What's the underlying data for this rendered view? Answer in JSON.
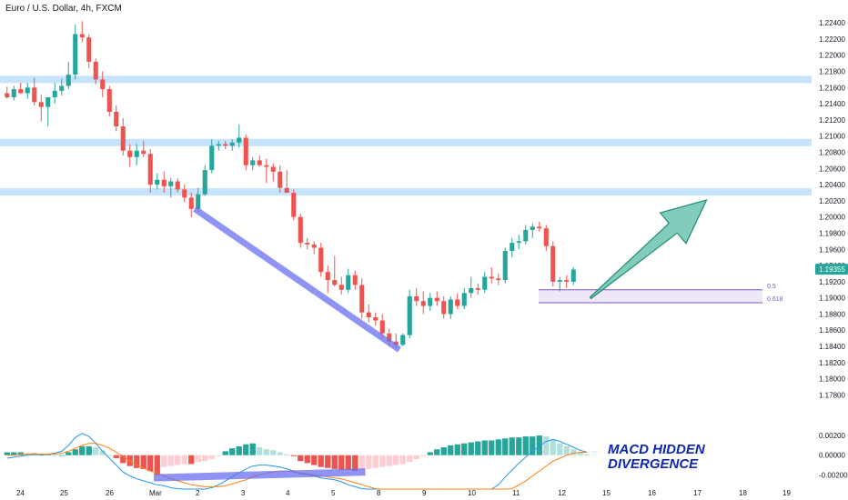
{
  "header": {
    "symbol_title": "Euro / U.S. Dollar, 4h, FXCM"
  },
  "colors": {
    "up": "#26a69a",
    "down": "#ef5350",
    "zone": "#bbdefb",
    "trendline": "#6a6ff0",
    "arrow": "#4db6a0",
    "fib": "#7e57c2",
    "fib_fill": "#ede7f6",
    "macd_line": "#2196f3",
    "signal_line": "#ff7f0e",
    "price_tag": "#26a69a"
  },
  "chart_data": [
    {
      "type": "candlestick",
      "title": "Euro / U.S. Dollar, 4h, FXCM",
      "x_tick_labels": [
        "24",
        "25",
        "26",
        "Mar",
        "2",
        "3",
        "4",
        "5",
        "8",
        "9",
        "10",
        "11",
        "12",
        "15",
        "16",
        "17",
        "18",
        "19"
      ],
      "y_ticks": [
        "1.22400",
        "1.22200",
        "1.22000",
        "1.21800",
        "1.21600",
        "1.21400",
        "1.21200",
        "1.21000",
        "1.20800",
        "1.20600",
        "1.20400",
        "1.20200",
        "1.20000",
        "1.19800",
        "1.19600",
        "1.19400",
        "1.19200",
        "1.19000",
        "1.18800",
        "1.18600",
        "1.18400",
        "1.18200",
        "1.18000",
        "1.17800"
      ],
      "ylim": [
        1.1767,
        1.2248
      ],
      "current_price": "1.19355",
      "candles": [
        {
          "o": 1.2153,
          "h": 1.2161,
          "l": 1.2146,
          "c": 1.2148
        },
        {
          "o": 1.2148,
          "h": 1.2162,
          "l": 1.2144,
          "c": 1.2158
        },
        {
          "o": 1.2158,
          "h": 1.2166,
          "l": 1.2152,
          "c": 1.2153
        },
        {
          "o": 1.2153,
          "h": 1.2166,
          "l": 1.2146,
          "c": 1.216
        },
        {
          "o": 1.216,
          "h": 1.2172,
          "l": 1.2138,
          "c": 1.2142
        },
        {
          "o": 1.2142,
          "h": 1.2151,
          "l": 1.2118,
          "c": 1.2136
        },
        {
          "o": 1.2136,
          "h": 1.2148,
          "l": 1.2112,
          "c": 1.2148
        },
        {
          "o": 1.2148,
          "h": 1.2166,
          "l": 1.214,
          "c": 1.2156
        },
        {
          "o": 1.2156,
          "h": 1.2171,
          "l": 1.215,
          "c": 1.2162
        },
        {
          "o": 1.2162,
          "h": 1.2192,
          "l": 1.2158,
          "c": 1.2176
        },
        {
          "o": 1.2176,
          "h": 1.2238,
          "l": 1.217,
          "c": 1.2226
        },
        {
          "o": 1.2226,
          "h": 1.2242,
          "l": 1.2216,
          "c": 1.2222
        },
        {
          "o": 1.2222,
          "h": 1.2226,
          "l": 1.2184,
          "c": 1.2192
        },
        {
          "o": 1.2192,
          "h": 1.2196,
          "l": 1.2164,
          "c": 1.217
        },
        {
          "o": 1.217,
          "h": 1.218,
          "l": 1.2148,
          "c": 1.2158
        },
        {
          "o": 1.2158,
          "h": 1.2162,
          "l": 1.2124,
          "c": 1.213
        },
        {
          "o": 1.213,
          "h": 1.2138,
          "l": 1.2106,
          "c": 1.2112
        },
        {
          "o": 1.2112,
          "h": 1.2122,
          "l": 1.2076,
          "c": 1.2082
        },
        {
          "o": 1.2082,
          "h": 1.209,
          "l": 1.2062,
          "c": 1.2074
        },
        {
          "o": 1.2074,
          "h": 1.209,
          "l": 1.2064,
          "c": 1.2082
        },
        {
          "o": 1.2082,
          "h": 1.2094,
          "l": 1.2074,
          "c": 1.2078
        },
        {
          "o": 1.2078,
          "h": 1.2084,
          "l": 1.203,
          "c": 1.204
        },
        {
          "o": 1.204,
          "h": 1.2054,
          "l": 1.2034,
          "c": 1.2046
        },
        {
          "o": 1.2046,
          "h": 1.2056,
          "l": 1.203,
          "c": 1.2038
        },
        {
          "o": 1.2038,
          "h": 1.2048,
          "l": 1.2024,
          "c": 1.2044
        },
        {
          "o": 1.2044,
          "h": 1.2048,
          "l": 1.203,
          "c": 1.2034
        },
        {
          "o": 1.2034,
          "h": 1.204,
          "l": 1.2018,
          "c": 1.2024
        },
        {
          "o": 1.2024,
          "h": 1.203,
          "l": 1.2,
          "c": 1.201
        },
        {
          "o": 1.201,
          "h": 1.2036,
          "l": 1.2006,
          "c": 1.2028
        },
        {
          "o": 1.2028,
          "h": 1.2064,
          "l": 1.2026,
          "c": 1.2058
        },
        {
          "o": 1.2058,
          "h": 1.2096,
          "l": 1.2054,
          "c": 1.2088
        },
        {
          "o": 1.2088,
          "h": 1.2094,
          "l": 1.2082,
          "c": 1.209
        },
        {
          "o": 1.209,
          "h": 1.2094,
          "l": 1.2084,
          "c": 1.2088
        },
        {
          "o": 1.2088,
          "h": 1.2096,
          "l": 1.2082,
          "c": 1.2092
        },
        {
          "o": 1.2092,
          "h": 1.2114,
          "l": 1.2086,
          "c": 1.2098
        },
        {
          "o": 1.2098,
          "h": 1.2102,
          "l": 1.2058,
          "c": 1.2064
        },
        {
          "o": 1.2064,
          "h": 1.2074,
          "l": 1.2058,
          "c": 1.207
        },
        {
          "o": 1.207,
          "h": 1.2076,
          "l": 1.2062,
          "c": 1.2064
        },
        {
          "o": 1.2064,
          "h": 1.2072,
          "l": 1.2042,
          "c": 1.2062
        },
        {
          "o": 1.2062,
          "h": 1.2066,
          "l": 1.2044,
          "c": 1.2056
        },
        {
          "o": 1.2056,
          "h": 1.2064,
          "l": 1.203,
          "c": 1.2036
        },
        {
          "o": 1.2036,
          "h": 1.2058,
          "l": 1.203,
          "c": 1.203
        },
        {
          "o": 1.203,
          "h": 1.2034,
          "l": 1.1996,
          "c": 1.2
        },
        {
          "o": 1.2,
          "h": 1.2004,
          "l": 1.1962,
          "c": 1.1968
        },
        {
          "o": 1.1968,
          "h": 1.1974,
          "l": 1.196,
          "c": 1.1966
        },
        {
          "o": 1.1966,
          "h": 1.197,
          "l": 1.1954,
          "c": 1.1962
        },
        {
          "o": 1.1962,
          "h": 1.1968,
          "l": 1.1926,
          "c": 1.1932
        },
        {
          "o": 1.1932,
          "h": 1.194,
          "l": 1.1906,
          "c": 1.1922
        },
        {
          "o": 1.1922,
          "h": 1.1952,
          "l": 1.1914,
          "c": 1.1916
        },
        {
          "o": 1.1916,
          "h": 1.1926,
          "l": 1.1904,
          "c": 1.191
        },
        {
          "o": 1.191,
          "h": 1.1936,
          "l": 1.1906,
          "c": 1.1928
        },
        {
          "o": 1.1928,
          "h": 1.1934,
          "l": 1.191,
          "c": 1.1916
        },
        {
          "o": 1.1916,
          "h": 1.1924,
          "l": 1.1874,
          "c": 1.1882
        },
        {
          "o": 1.1882,
          "h": 1.1892,
          "l": 1.187,
          "c": 1.1876
        },
        {
          "o": 1.1876,
          "h": 1.1882,
          "l": 1.1866,
          "c": 1.1872
        },
        {
          "o": 1.1872,
          "h": 1.188,
          "l": 1.185,
          "c": 1.1856
        },
        {
          "o": 1.1856,
          "h": 1.1862,
          "l": 1.184,
          "c": 1.1846
        },
        {
          "o": 1.1846,
          "h": 1.1856,
          "l": 1.1838,
          "c": 1.1842
        },
        {
          "o": 1.1842,
          "h": 1.1856,
          "l": 1.184,
          "c": 1.1854
        },
        {
          "o": 1.1854,
          "h": 1.191,
          "l": 1.185,
          "c": 1.1902
        },
        {
          "o": 1.1902,
          "h": 1.1912,
          "l": 1.189,
          "c": 1.1896
        },
        {
          "o": 1.1896,
          "h": 1.1908,
          "l": 1.188,
          "c": 1.189
        },
        {
          "o": 1.189,
          "h": 1.1906,
          "l": 1.1884,
          "c": 1.19
        },
        {
          "o": 1.19,
          "h": 1.1908,
          "l": 1.189,
          "c": 1.1896
        },
        {
          "o": 1.1896,
          "h": 1.1902,
          "l": 1.1874,
          "c": 1.188
        },
        {
          "o": 1.188,
          "h": 1.1902,
          "l": 1.1874,
          "c": 1.1898
        },
        {
          "o": 1.1898,
          "h": 1.1906,
          "l": 1.1886,
          "c": 1.189
        },
        {
          "o": 1.189,
          "h": 1.1912,
          "l": 1.1886,
          "c": 1.1906
        },
        {
          "o": 1.1906,
          "h": 1.1926,
          "l": 1.19,
          "c": 1.1912
        },
        {
          "o": 1.1912,
          "h": 1.1918,
          "l": 1.1904,
          "c": 1.191
        },
        {
          "o": 1.191,
          "h": 1.1932,
          "l": 1.1906,
          "c": 1.1926
        },
        {
          "o": 1.1926,
          "h": 1.1938,
          "l": 1.1918,
          "c": 1.1924
        },
        {
          "o": 1.1924,
          "h": 1.193,
          "l": 1.1916,
          "c": 1.1922
        },
        {
          "o": 1.1922,
          "h": 1.1962,
          "l": 1.1918,
          "c": 1.1958
        },
        {
          "o": 1.1958,
          "h": 1.1974,
          "l": 1.195,
          "c": 1.1968
        },
        {
          "o": 1.1968,
          "h": 1.1978,
          "l": 1.196,
          "c": 1.197
        },
        {
          "o": 1.197,
          "h": 1.199,
          "l": 1.1966,
          "c": 1.1984
        },
        {
          "o": 1.1984,
          "h": 1.1992,
          "l": 1.1974,
          "c": 1.1988
        },
        {
          "o": 1.1988,
          "h": 1.1994,
          "l": 1.1982,
          "c": 1.1986
        },
        {
          "o": 1.1986,
          "h": 1.199,
          "l": 1.1958,
          "c": 1.1964
        },
        {
          "o": 1.1964,
          "h": 1.197,
          "l": 1.1914,
          "c": 1.192
        },
        {
          "o": 1.192,
          "h": 1.1926,
          "l": 1.1908,
          "c": 1.1922
        },
        {
          "o": 1.1922,
          "h": 1.1928,
          "l": 1.1912,
          "c": 1.192
        },
        {
          "o": 1.192,
          "h": 1.1938,
          "l": 1.1916,
          "c": 1.1935
        }
      ],
      "resistance_zones": [
        1.217,
        1.2092,
        1.2031
      ],
      "fib_levels": [
        {
          "label": "0.5",
          "value": 1.191
        },
        {
          "label": "0.618",
          "value": 1.1894
        }
      ],
      "trendline": {
        "from": {
          "bar": 28,
          "price": 1.201
        },
        "to": {
          "bar": 58,
          "price": 1.1836
        }
      },
      "arrow": {
        "from": {
          "bar": 86,
          "price": 1.19
        },
        "to": {
          "bar": 103,
          "price": 1.2021
        }
      }
    },
    {
      "type": "bar",
      "title": "",
      "y_ticks": [
        "0.00200",
        "0.00000",
        "-0.00200"
      ],
      "ylim": [
        -0.0027,
        0.0032
      ],
      "histogram": [
        0.0003,
        0.0003,
        0.0003,
        0.0002,
        0.0002,
        0.0001,
        0.0001,
        0.0,
        0.0,
        0.0003,
        0.0006,
        0.0009,
        0.0009,
        0.0008,
        0.0005,
        0.0,
        -0.0003,
        -0.0008,
        -0.0011,
        -0.0013,
        -0.0014,
        -0.0016,
        -0.002,
        -0.0012,
        -0.0011,
        -0.001,
        -0.0009,
        -0.0009,
        -0.0007,
        -0.0006,
        -0.0004,
        0.0,
        0.0004,
        0.0007,
        0.0009,
        0.0011,
        0.0012,
        0.0008,
        0.0006,
        0.0005,
        0.0003,
        0.0001,
        -0.0001,
        -0.0006,
        -0.0008,
        -0.001,
        -0.0012,
        -0.0013,
        -0.0014,
        -0.0015,
        -0.0015,
        -0.0016,
        -0.0015,
        -0.0014,
        -0.0013,
        -0.0012,
        -0.0011,
        -0.001,
        -0.0009,
        -0.0007,
        -0.0004,
        -0.0001,
        0.0003,
        0.0006,
        0.0008,
        0.001,
        0.0011,
        0.0012,
        0.0013,
        0.0014,
        0.0015,
        0.0015,
        0.0016,
        0.0017,
        0.0018,
        0.0018,
        0.0019,
        0.0019,
        0.002,
        0.0019,
        0.0016,
        0.0012,
        0.0009,
        0.0006,
        0.0003,
        0.0001
      ],
      "macd_line": [
        -0.0003,
        -0.0002,
        -0.0001,
        0.0,
        0.0001,
        0.0,
        0.0001,
        0.0002,
        0.0004,
        0.001,
        0.0018,
        0.0022,
        0.0019,
        0.0012,
        0.0004,
        -0.0003,
        -0.001,
        -0.0017,
        -0.0021,
        -0.0024,
        -0.0026,
        -0.0028,
        -0.003,
        -0.0031,
        -0.0033,
        -0.0034,
        -0.0035,
        -0.0036,
        -0.0036,
        -0.0035,
        -0.0033,
        -0.003,
        -0.0026,
        -0.0022,
        -0.0018,
        -0.0014,
        -0.0011,
        -0.001,
        -0.001,
        -0.0011,
        -0.0012,
        -0.0014,
        -0.0016,
        -0.0019,
        -0.002,
        -0.0021,
        -0.0023,
        -0.0024,
        -0.0025,
        -0.0027,
        -0.003,
        -0.0032,
        -0.0034,
        -0.0035,
        -0.0036,
        -0.0036,
        -0.0036,
        -0.0036,
        -0.0036,
        -0.0036,
        -0.0036,
        -0.0036,
        -0.0036,
        -0.0036,
        -0.0036,
        -0.0036,
        -0.0036,
        -0.0036,
        -0.0036,
        -0.0036,
        -0.0036,
        -0.0036,
        -0.003,
        -0.0022,
        -0.0015,
        -0.0008,
        -0.0002,
        0.0004,
        0.0009,
        0.0014,
        0.0016,
        0.0014,
        0.0011,
        0.0008,
        0.0005,
        0.0003
      ],
      "signal_line": [
        0.0,
        0.0,
        0.0001,
        0.0001,
        0.0001,
        0.0001,
        0.0001,
        0.0001,
        0.0002,
        0.0004,
        0.0007,
        0.001,
        0.0012,
        0.0012,
        0.001,
        0.0007,
        0.0003,
        -0.0001,
        -0.0006,
        -0.001,
        -0.0013,
        -0.0016,
        -0.0018,
        -0.0021,
        -0.0024,
        -0.0026,
        -0.0028,
        -0.003,
        -0.0031,
        -0.0032,
        -0.0032,
        -0.0032,
        -0.0031,
        -0.0029,
        -0.0027,
        -0.0025,
        -0.0022,
        -0.002,
        -0.0018,
        -0.0017,
        -0.0016,
        -0.0016,
        -0.0017,
        -0.0018,
        -0.0019,
        -0.002,
        -0.0021,
        -0.0022,
        -0.0023,
        -0.0024,
        -0.0026,
        -0.0028,
        -0.003,
        -0.0032,
        -0.0034,
        -0.0035,
        -0.0036,
        -0.0036,
        -0.0036,
        -0.0036,
        -0.0036,
        -0.0036,
        -0.0036,
        -0.0036,
        -0.0036,
        -0.0036,
        -0.0036,
        -0.0036,
        -0.0036,
        -0.0036,
        -0.0036,
        -0.0036,
        -0.0036,
        -0.0036,
        -0.0034,
        -0.003,
        -0.0026,
        -0.0021,
        -0.0016,
        -0.0011,
        -0.0006,
        -0.0003,
        0.0,
        0.0002,
        0.0003,
        0.0003
      ],
      "divergence_line": {
        "from": {
          "bar": 22,
          "value": -0.0023
        },
        "to": {
          "bar": 53,
          "value": -0.0017
        }
      }
    }
  ],
  "annotation": {
    "line1": "MACD HIDDEN",
    "line2": "DIVERGENCE"
  }
}
